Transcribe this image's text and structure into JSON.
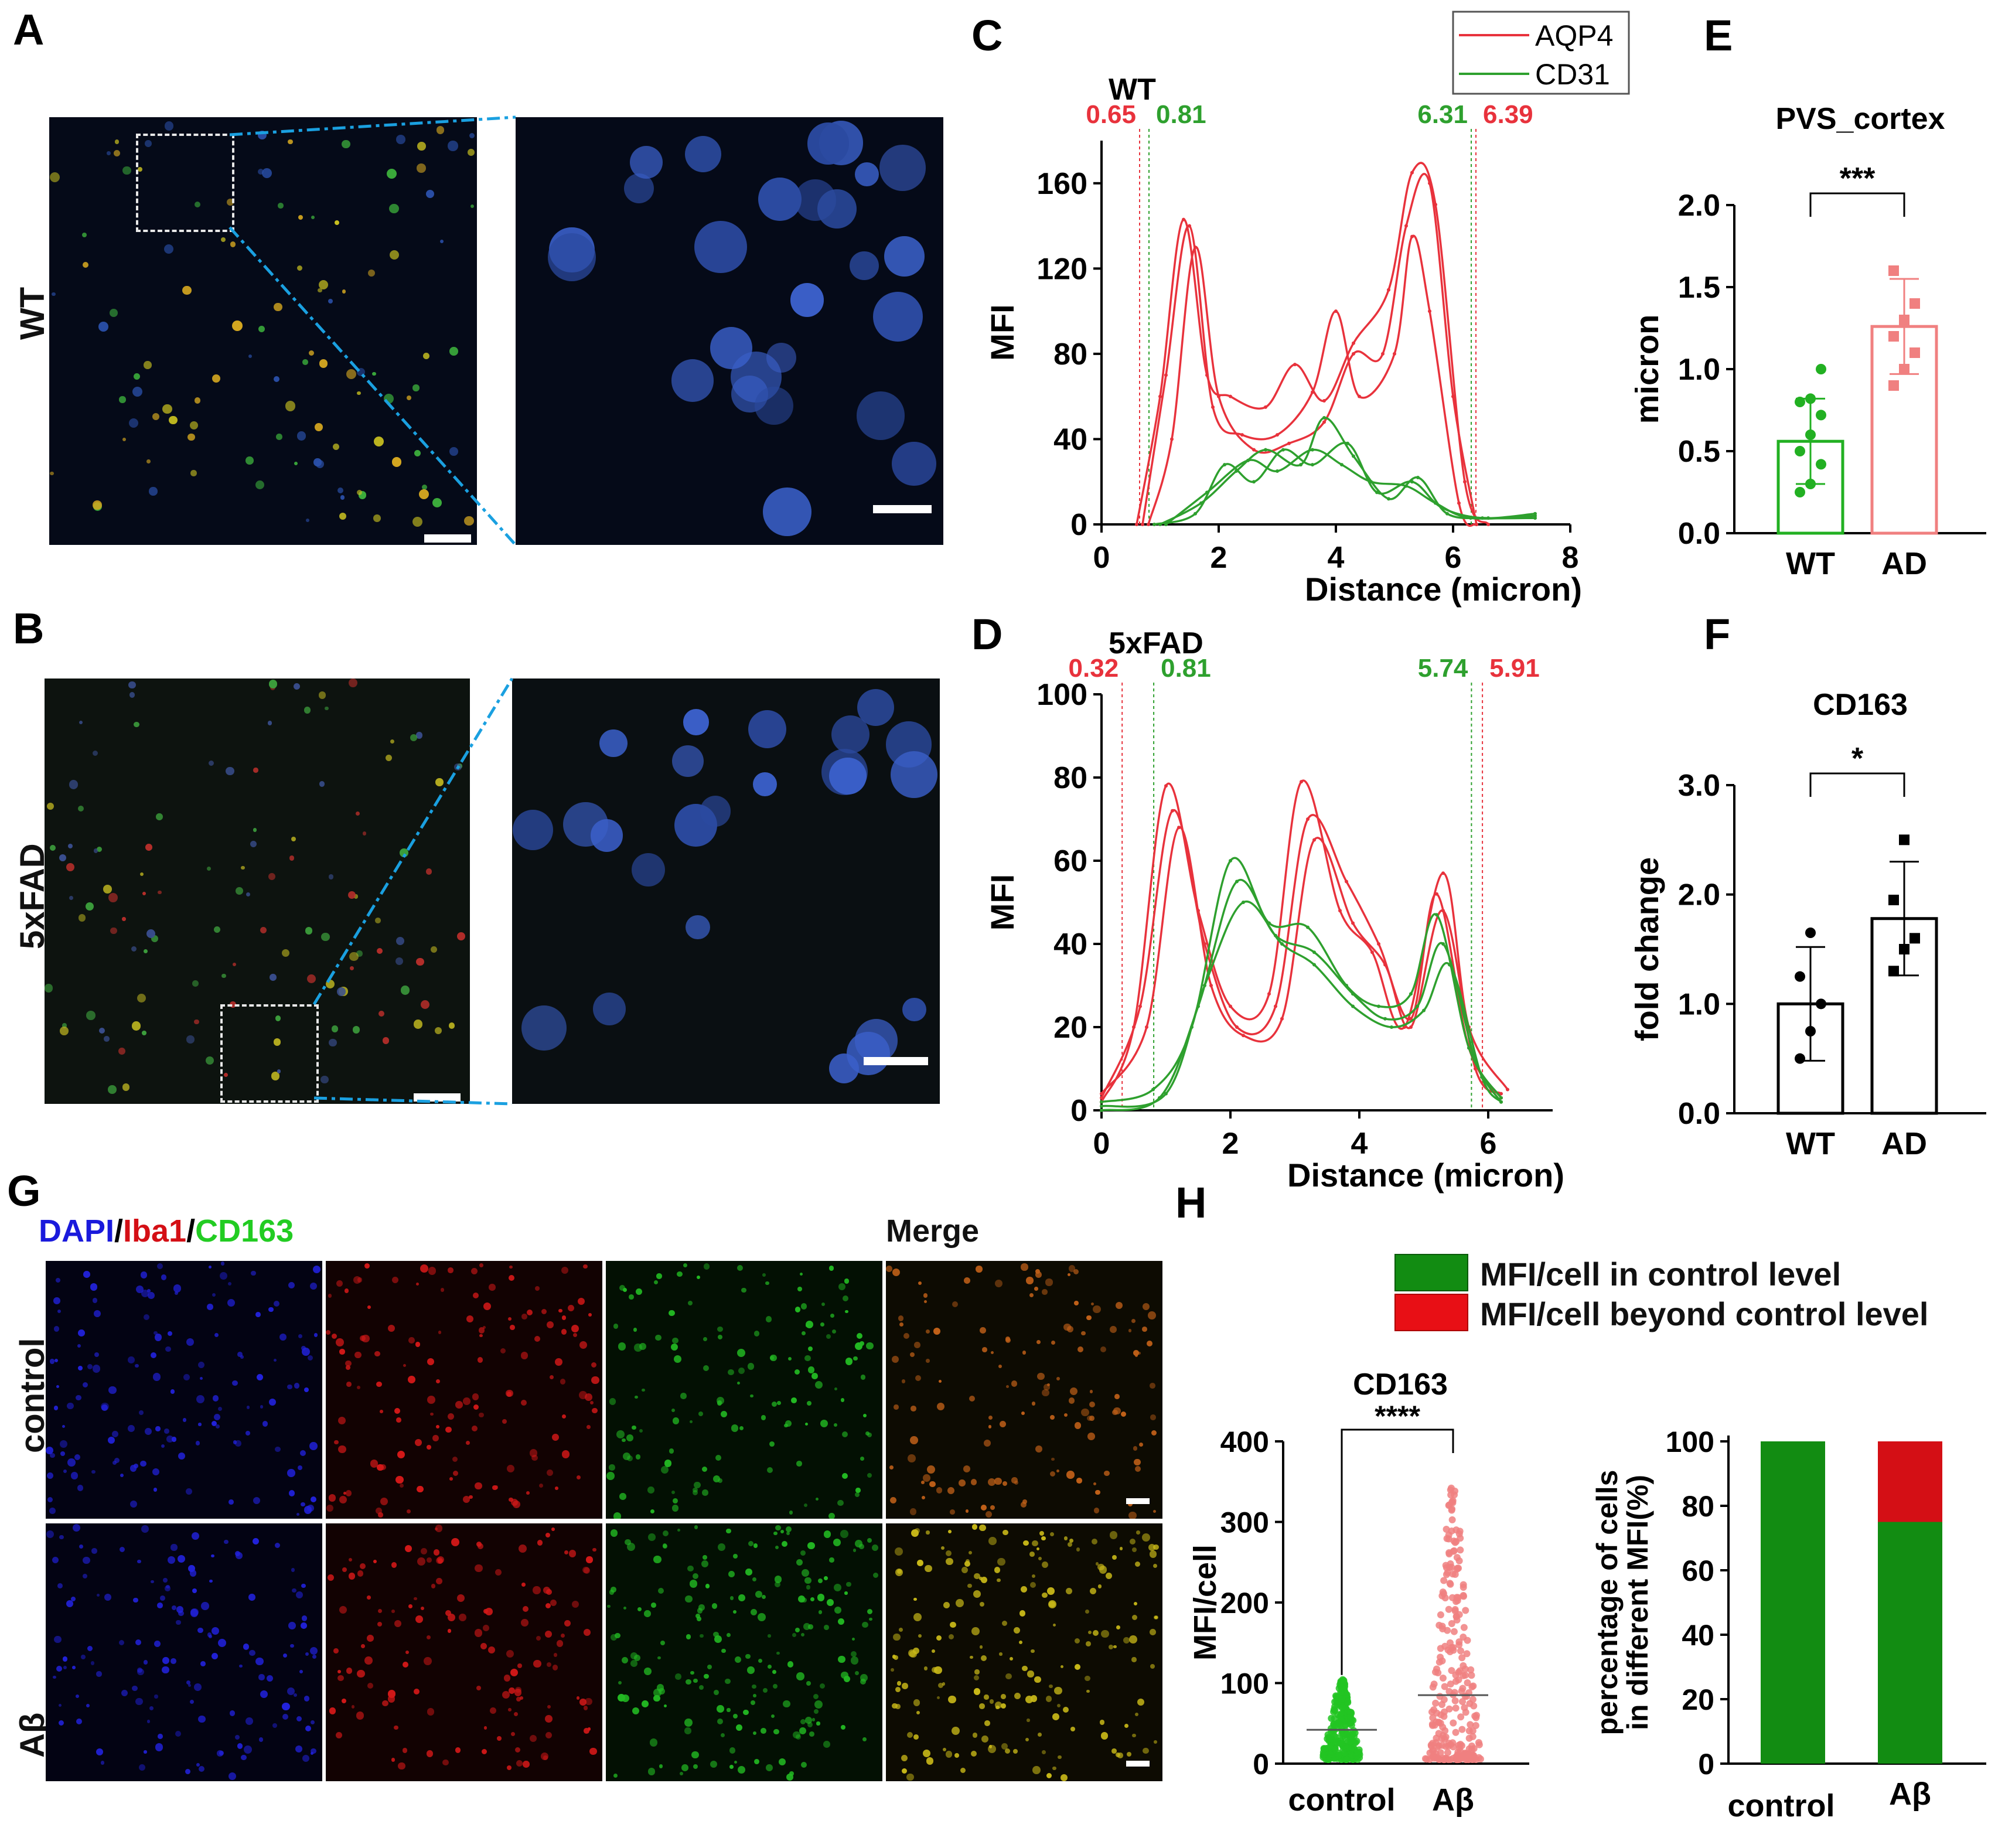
{
  "panel_letters": {
    "A": "A",
    "B": "B",
    "C": "C",
    "D": "D",
    "E": "E",
    "F": "F",
    "G": "G",
    "H": "H"
  },
  "row_labels": {
    "wt": "WT",
    "fad": "5xFAD",
    "control": "control",
    "abeta": "Aβ"
  },
  "panel_g": {
    "stain_dapi": "DAPI",
    "stain_iba1": "Iba1",
    "stain_cd163": "CD163",
    "sep": "/",
    "merge": "Merge"
  },
  "colors": {
    "aqp4": "#e8323c",
    "cd31": "#2ea02e",
    "wt_bar": "#22b022",
    "ad_bar": "#f08080",
    "ctrl_green": "#128c12",
    "beyond_red": "#d40f15",
    "scope_line": "#1aa0e0"
  },
  "panel_h_legend": [
    "MFI/cell in control level",
    "MFI/cell beyond control level"
  ],
  "chart_data": [
    {
      "id": "C",
      "type": "line",
      "title": "WT",
      "xlabel": "Distance (micron)",
      "ylabel": "MFI",
      "xlim": [
        0,
        8
      ],
      "ylim": [
        0,
        180
      ],
      "xticks": [
        0,
        2,
        4,
        6,
        8
      ],
      "yticks": [
        0,
        40,
        80,
        120,
        160
      ],
      "legend": [
        "AQP4",
        "CD31"
      ],
      "legend_position": "top-right",
      "markers": [
        {
          "label": "0.65",
          "x": 0.65,
          "series": "AQP4"
        },
        {
          "label": "0.81",
          "x": 0.81,
          "series": "CD31"
        },
        {
          "label": "6.31",
          "x": 6.31,
          "series": "CD31"
        },
        {
          "label": "6.39",
          "x": 6.39,
          "series": "AQP4"
        }
      ],
      "series": [
        {
          "name": "AQP4",
          "points": [
            [
              0.6,
              0
            ],
            [
              1.0,
              60
            ],
            [
              1.4,
              143
            ],
            [
              1.8,
              70
            ],
            [
              2.2,
              60
            ],
            [
              2.8,
              55
            ],
            [
              3.3,
              75
            ],
            [
              3.8,
              58
            ],
            [
              4.3,
              85
            ],
            [
              4.9,
              110
            ],
            [
              5.3,
              165
            ],
            [
              5.7,
              150
            ],
            [
              6.2,
              20
            ],
            [
              6.6,
              0
            ]
          ]
        },
        {
          "name": "AQP4",
          "points": [
            [
              0.7,
              0
            ],
            [
              1.1,
              70
            ],
            [
              1.5,
              140
            ],
            [
              1.9,
              55
            ],
            [
              2.4,
              42
            ],
            [
              3.0,
              42
            ],
            [
              3.6,
              62
            ],
            [
              4.0,
              100
            ],
            [
              4.4,
              60
            ],
            [
              5.0,
              80
            ],
            [
              5.3,
              135
            ],
            [
              5.6,
              100
            ],
            [
              6.1,
              10
            ],
            [
              6.4,
              0
            ]
          ]
        },
        {
          "name": "AQP4",
          "points": [
            [
              0.8,
              0
            ],
            [
              1.2,
              40
            ],
            [
              1.6,
              130
            ],
            [
              2.0,
              60
            ],
            [
              2.6,
              35
            ],
            [
              3.2,
              38
            ],
            [
              3.8,
              48
            ],
            [
              4.3,
              80
            ],
            [
              4.8,
              80
            ],
            [
              5.2,
              140
            ],
            [
              5.6,
              160
            ],
            [
              6.0,
              60
            ],
            [
              6.4,
              0
            ]
          ]
        },
        {
          "name": "CD31",
          "points": [
            [
              0.9,
              0
            ],
            [
              1.6,
              5
            ],
            [
              2.1,
              28
            ],
            [
              2.6,
              20
            ],
            [
              3.1,
              35
            ],
            [
              3.6,
              28
            ],
            [
              4.2,
              38
            ],
            [
              4.7,
              15
            ],
            [
              5.3,
              20
            ],
            [
              5.8,
              8
            ],
            [
              6.5,
              3
            ],
            [
              7.4,
              5
            ]
          ]
        },
        {
          "name": "CD31",
          "points": [
            [
              1.0,
              0
            ],
            [
              1.7,
              10
            ],
            [
              2.3,
              25
            ],
            [
              2.8,
              35
            ],
            [
              3.4,
              28
            ],
            [
              3.8,
              50
            ],
            [
              4.3,
              32
            ],
            [
              4.9,
              12
            ],
            [
              5.4,
              22
            ],
            [
              5.9,
              5
            ],
            [
              6.6,
              3
            ],
            [
              7.4,
              3
            ]
          ]
        },
        {
          "name": "CD31",
          "points": [
            [
              1.1,
              0
            ],
            [
              1.8,
              15
            ],
            [
              2.5,
              30
            ],
            [
              3.0,
              25
            ],
            [
              3.6,
              35
            ],
            [
              4.1,
              28
            ],
            [
              4.6,
              20
            ],
            [
              5.2,
              18
            ],
            [
              5.7,
              10
            ],
            [
              6.3,
              3
            ],
            [
              7.4,
              4
            ]
          ]
        }
      ]
    },
    {
      "id": "D",
      "type": "line",
      "title": "5xFAD",
      "xlabel": "Distance (micron)",
      "ylabel": "MFI",
      "xlim": [
        0,
        7
      ],
      "ylim": [
        0,
        100
      ],
      "xticks": [
        0,
        2,
        4,
        6
      ],
      "yticks": [
        0,
        20,
        40,
        60,
        80,
        100
      ],
      "markers": [
        {
          "label": "0.32",
          "x": 0.32,
          "series": "AQP4"
        },
        {
          "label": "0.81",
          "x": 0.81,
          "series": "CD31"
        },
        {
          "label": "5.74",
          "x": 5.74,
          "series": "CD31"
        },
        {
          "label": "5.91",
          "x": 5.91,
          "series": "AQP4"
        }
      ],
      "series": [
        {
          "name": "AQP4",
          "points": [
            [
              0,
              2
            ],
            [
              0.5,
              20
            ],
            [
              1.0,
              78
            ],
            [
              1.5,
              48
            ],
            [
              2.0,
              25
            ],
            [
              2.6,
              28
            ],
            [
              3.1,
              79
            ],
            [
              3.7,
              48
            ],
            [
              4.2,
              38
            ],
            [
              4.7,
              20
            ],
            [
              5.3,
              57
            ],
            [
              5.7,
              20
            ],
            [
              6.3,
              5
            ]
          ]
        },
        {
          "name": "AQP4",
          "points": [
            [
              0,
              3
            ],
            [
              0.6,
              25
            ],
            [
              1.1,
              72
            ],
            [
              1.6,
              40
            ],
            [
              2.1,
              20
            ],
            [
              2.7,
              25
            ],
            [
              3.2,
              70
            ],
            [
              3.8,
              55
            ],
            [
              4.3,
              40
            ],
            [
              4.8,
              22
            ],
            [
              5.2,
              52
            ],
            [
              5.7,
              15
            ],
            [
              6.2,
              3
            ]
          ]
        },
        {
          "name": "AQP4",
          "points": [
            [
              0,
              4
            ],
            [
              0.7,
              20
            ],
            [
              1.2,
              68
            ],
            [
              1.7,
              30
            ],
            [
              2.2,
              18
            ],
            [
              2.8,
              22
            ],
            [
              3.3,
              65
            ],
            [
              3.9,
              45
            ],
            [
              4.4,
              35
            ],
            [
              4.8,
              20
            ],
            [
              5.3,
              48
            ],
            [
              5.8,
              10
            ],
            [
              6.2,
              4
            ]
          ]
        },
        {
          "name": "CD31",
          "points": [
            [
              0,
              2
            ],
            [
              0.8,
              5
            ],
            [
              1.4,
              20
            ],
            [
              2.0,
              60
            ],
            [
              2.6,
              45
            ],
            [
              3.2,
              44
            ],
            [
              3.8,
              30
            ],
            [
              4.3,
              25
            ],
            [
              4.8,
              28
            ],
            [
              5.2,
              47
            ],
            [
              5.7,
              15
            ],
            [
              6.2,
              3
            ]
          ]
        },
        {
          "name": "CD31",
          "points": [
            [
              0,
              0
            ],
            [
              0.9,
              3
            ],
            [
              1.5,
              25
            ],
            [
              2.1,
              55
            ],
            [
              2.7,
              42
            ],
            [
              3.3,
              38
            ],
            [
              3.9,
              28
            ],
            [
              4.4,
              22
            ],
            [
              4.9,
              25
            ],
            [
              5.3,
              40
            ],
            [
              5.8,
              12
            ],
            [
              6.2,
              2
            ]
          ]
        },
        {
          "name": "CD31",
          "points": [
            [
              0,
              1
            ],
            [
              1.0,
              4
            ],
            [
              1.6,
              30
            ],
            [
              2.2,
              50
            ],
            [
              2.8,
              40
            ],
            [
              3.3,
              35
            ],
            [
              3.9,
              25
            ],
            [
              4.5,
              20
            ],
            [
              5.0,
              24
            ],
            [
              5.4,
              35
            ],
            [
              5.9,
              8
            ],
            [
              6.2,
              2
            ]
          ]
        }
      ]
    },
    {
      "id": "E",
      "type": "bar",
      "title": "PVS_cortex",
      "ylabel": "micron",
      "categories": [
        "WT",
        "AD"
      ],
      "values": [
        0.56,
        1.26
      ],
      "errors": [
        0.26,
        0.29
      ],
      "ylim": [
        0,
        2.0
      ],
      "yticks": [
        "0.0",
        "0.5",
        "1.0",
        "1.5",
        "2.0"
      ],
      "significance": "***",
      "points": [
        [
          0.25,
          0.3,
          0.42,
          0.5,
          0.6,
          0.72,
          0.8,
          0.82,
          1.0
        ],
        [
          0.9,
          1.0,
          1.1,
          1.2,
          1.3,
          1.4,
          1.6
        ]
      ]
    },
    {
      "id": "F",
      "type": "bar",
      "title": "CD163",
      "ylabel": "fold change",
      "categories": [
        "WT",
        "AD"
      ],
      "values": [
        1.0,
        1.78
      ],
      "errors": [
        0.52,
        0.52
      ],
      "ylim": [
        0,
        3.0
      ],
      "yticks": [
        "0.0",
        "1.0",
        "2.0",
        "3.0"
      ],
      "significance": "*",
      "points": [
        [
          0.5,
          0.75,
          1.0,
          1.25,
          1.65
        ],
        [
          1.3,
          1.5,
          1.6,
          1.95,
          2.5
        ]
      ]
    },
    {
      "id": "H1",
      "type": "scatter",
      "title": "CD163",
      "ylabel": "MFI/cell",
      "categories": [
        "control",
        "Aβ"
      ],
      "ylim": [
        0,
        400
      ],
      "yticks": [
        0,
        100,
        200,
        300,
        400
      ],
      "significance": "****",
      "means": [
        42,
        85
      ],
      "ranges": [
        [
          5,
          105
        ],
        [
          5,
          345
        ]
      ]
    },
    {
      "id": "H2",
      "type": "bar",
      "ylabel": "percentage of cells in different MFI(%)",
      "categories": [
        "control",
        "Aβ"
      ],
      "ylim": [
        0,
        100
      ],
      "yticks": [
        0,
        20,
        40,
        60,
        80,
        100
      ],
      "series": [
        {
          "name": "MFI/cell in control level",
          "values": [
            100,
            75
          ]
        },
        {
          "name": "MFI/cell beyond control level",
          "values": [
            0,
            25
          ]
        }
      ]
    }
  ]
}
